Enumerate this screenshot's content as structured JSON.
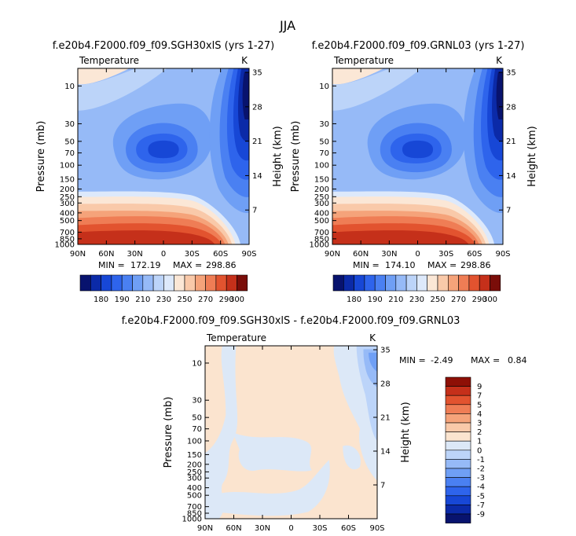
{
  "title": "JJA",
  "colors": {
    "temp_scale": [
      "#08136e",
      "#0b2aa8",
      "#1747d6",
      "#2e64ec",
      "#4a80f2",
      "#6f9ff5",
      "#96baf7",
      "#bcd4f9",
      "#dde9fb",
      "#fbe7d6",
      "#f9c9a9",
      "#f5a37a",
      "#ef7d55",
      "#e2532f",
      "#c5301a",
      "#7a0d09"
    ],
    "diff_scale": [
      "#08136e",
      "#0b2aa8",
      "#1747d6",
      "#2e64ec",
      "#4a80f2",
      "#6f9ff5",
      "#96baf7",
      "#bcd4f9",
      "#dce8f7",
      "#fbe4cf",
      "#f9c9a9",
      "#f5a37a",
      "#ef7d55",
      "#e2532f",
      "#c5301a",
      "#8e1006"
    ]
  },
  "chart_data": [
    {
      "type": "heatmap",
      "panel": "top-left",
      "title": "f.e20b4.F2000.f09_f09.SGH30xlS (yrs 1-27)",
      "variable": "Temperature",
      "units": "K",
      "xlabel": "",
      "ylabel": "Pressure (mb)",
      "ylabel_right": "Height (km)",
      "x_ticks": [
        "90N",
        "60N",
        "30N",
        "0",
        "30S",
        "60S",
        "90S"
      ],
      "y_ticks": [
        "10",
        "30",
        "50",
        "70",
        "100",
        "150",
        "200",
        "250",
        "300",
        "400",
        "500",
        "700",
        "850",
        "1000"
      ],
      "right_ticks": [
        "35",
        "28",
        "21",
        "14",
        "7"
      ],
      "stats": {
        "min_label": "MIN =",
        "min": "172.19",
        "max_label": "MAX =",
        "max": "298.86"
      },
      "colorbar_labels": [
        "180",
        "190",
        "210",
        "230",
        "250",
        "270",
        "290",
        "300"
      ]
    },
    {
      "type": "heatmap",
      "panel": "top-right",
      "title": "f.e20b4.F2000.f09_f09.GRNL03 (yrs 1-27)",
      "variable": "Temperature",
      "units": "K",
      "xlabel": "",
      "ylabel": "Pressure (mb)",
      "ylabel_right": "Height (km)",
      "x_ticks": [
        "90N",
        "60N",
        "30N",
        "0",
        "30S",
        "60S",
        "90S"
      ],
      "y_ticks": [
        "10",
        "30",
        "50",
        "70",
        "100",
        "150",
        "200",
        "250",
        "300",
        "400",
        "500",
        "700",
        "850",
        "1000"
      ],
      "right_ticks": [
        "35",
        "28",
        "21",
        "14",
        "7"
      ],
      "stats": {
        "min_label": "MIN =",
        "min": "174.10",
        "max_label": "MAX =",
        "max": "298.86"
      },
      "colorbar_labels": [
        "180",
        "190",
        "210",
        "230",
        "250",
        "270",
        "290",
        "300"
      ]
    },
    {
      "type": "heatmap",
      "panel": "bottom",
      "title": "f.e20b4.F2000.f09_f09.SGH30xlS - f.e20b4.F2000.f09_f09.GRNL03",
      "variable": "Temperature",
      "units": "K",
      "xlabel": "",
      "ylabel": "Pressure (mb)",
      "ylabel_right": "Height (km)",
      "x_ticks": [
        "90N",
        "60N",
        "30N",
        "0",
        "30S",
        "60S",
        "90S"
      ],
      "y_ticks": [
        "10",
        "30",
        "50",
        "70",
        "100",
        "150",
        "200",
        "250",
        "300",
        "400",
        "500",
        "700",
        "850",
        "1000"
      ],
      "right_ticks": [
        "35",
        "28",
        "21",
        "14",
        "7"
      ],
      "stats": {
        "min_label": "MIN =",
        "min": "-2.49",
        "max_label": "MAX =",
        "max": "0.84"
      },
      "colorbar_labels": [
        "9",
        "7",
        "5",
        "4",
        "3",
        "2",
        "1",
        "0",
        "-1",
        "-2",
        "-3",
        "-4",
        "-5",
        "-7",
        "-9"
      ]
    }
  ]
}
